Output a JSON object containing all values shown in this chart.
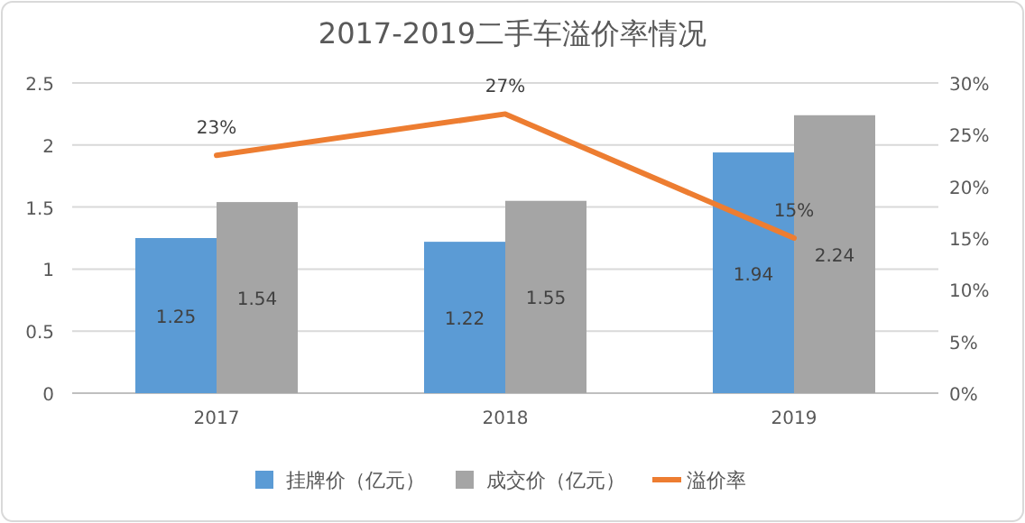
{
  "chart_data": {
    "type": "bar",
    "title": "2017-2019二手车溢价率情况",
    "categories": [
      "2017",
      "2018",
      "2019"
    ],
    "series": [
      {
        "name": "挂牌价（亿元）",
        "color": "#5b9bd5",
        "values": [
          1.25,
          1.22,
          1.94
        ],
        "value_labels": [
          "1.25",
          "1.22",
          "1.94"
        ]
      },
      {
        "name": "成交价（亿元）",
        "color": "#a5a5a5",
        "values": [
          1.54,
          1.55,
          2.24
        ],
        "value_labels": [
          "1.54",
          "1.55",
          "2.24"
        ]
      },
      {
        "name": "溢价率",
        "type": "line",
        "axis": "y2",
        "color": "#ed7d31",
        "values": [
          23,
          27,
          15
        ],
        "value_labels": [
          "23%",
          "27%",
          "15%"
        ]
      }
    ],
    "ylim": [
      0,
      2.5
    ],
    "yticks": [
      0,
      0.5,
      1,
      1.5,
      2,
      2.5
    ],
    "y2lim": [
      0,
      30
    ],
    "y2ticks": [
      {
        "value": 0,
        "label": "0%"
      },
      {
        "value": 5,
        "label": "5%"
      },
      {
        "value": 10,
        "label": "10%"
      },
      {
        "value": 15,
        "label": "15%"
      },
      {
        "value": 20,
        "label": "20%"
      },
      {
        "value": 25,
        "label": "25%"
      },
      {
        "value": 30,
        "label": "30%"
      }
    ],
    "grid": "y",
    "legend": "bottom"
  }
}
